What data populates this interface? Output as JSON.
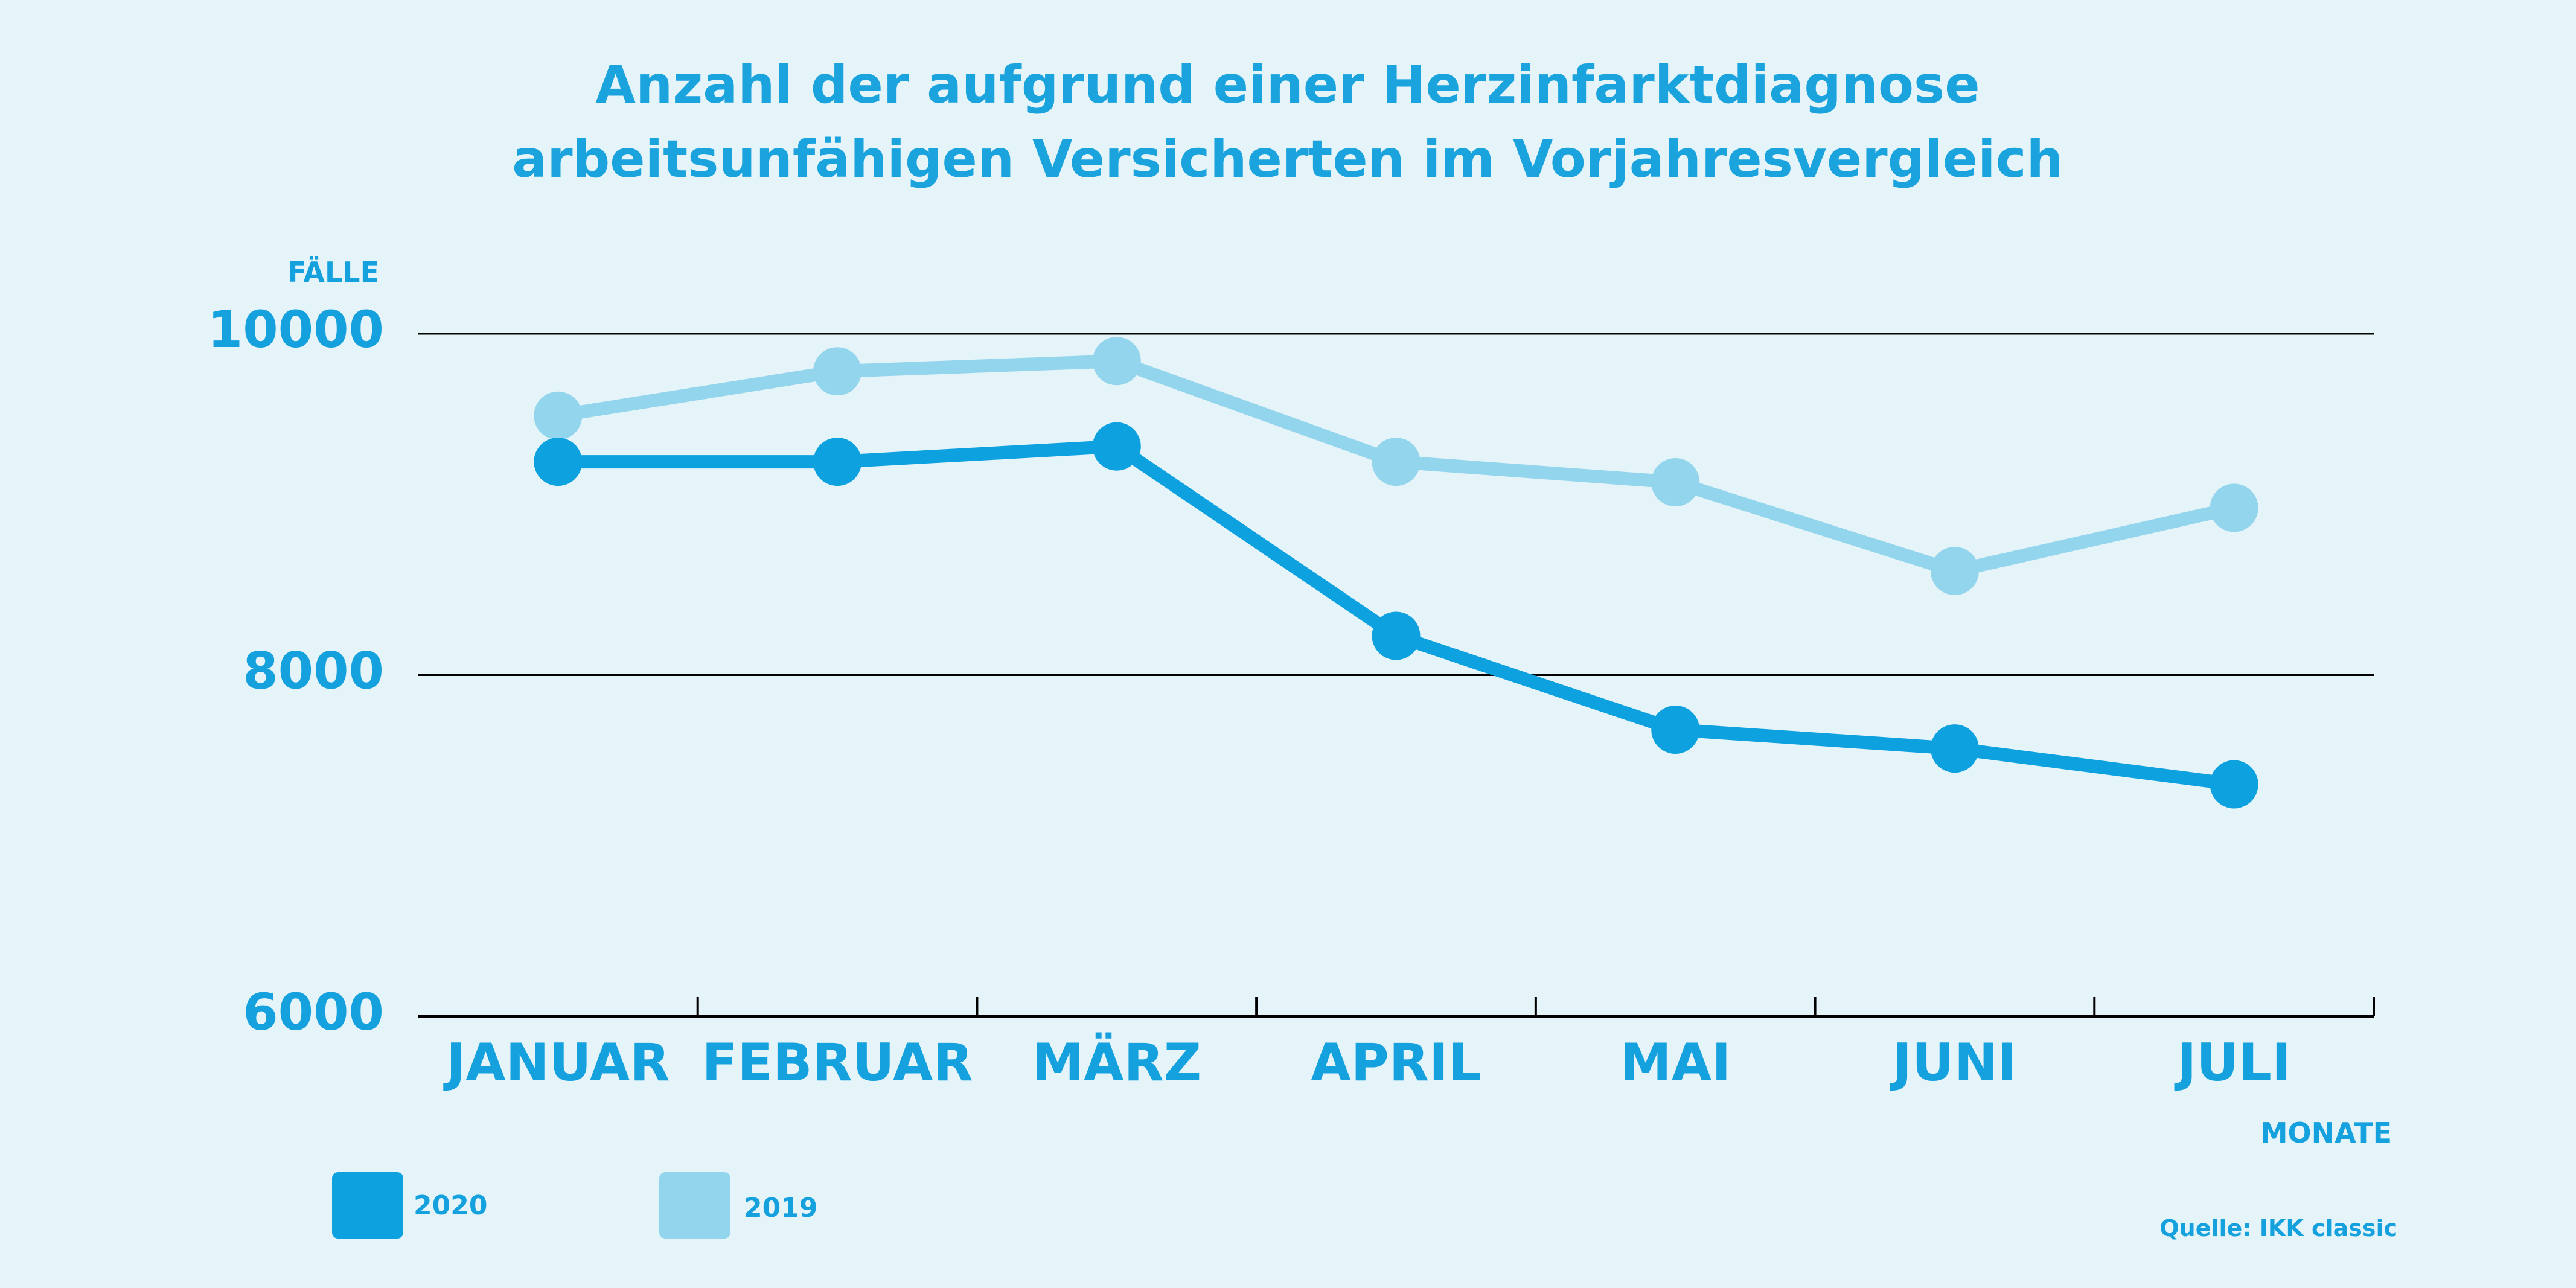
{
  "colors": {
    "background": "#e5f4f9",
    "accent": "#14a1de",
    "series_2020": "#0ea1e0",
    "series_2019": "#93d5ec",
    "axis": "#000000"
  },
  "chart_data": {
    "type": "line",
    "title": [
      "Anzahl der aufgrund einer Herzinfarktdiagnose",
      "arbeitsunfähigen Versicherten im Vorjahresvergleich"
    ],
    "ylabel": "FÄLLE",
    "xlabel": "MONATE",
    "categories": [
      "JANUAR",
      "FEBRUAR",
      "MÄRZ",
      "APRIL",
      "MAI",
      "JUNI",
      "JULI"
    ],
    "ylim": [
      6000,
      10000
    ],
    "yticks": [
      "6000",
      "8000",
      "10000"
    ],
    "grid": true,
    "legend_position": "bottom-left",
    "series": [
      {
        "name": "2020",
        "color": "#0ea1e0",
        "values": [
          9250,
          9250,
          9340,
          8230,
          7680,
          7570,
          7360
        ]
      },
      {
        "name": "2019",
        "color": "#93d5ec",
        "values": [
          9520,
          9780,
          9840,
          9250,
          9130,
          8610,
          8980
        ]
      }
    ],
    "source": "Quelle: IKK classic"
  }
}
